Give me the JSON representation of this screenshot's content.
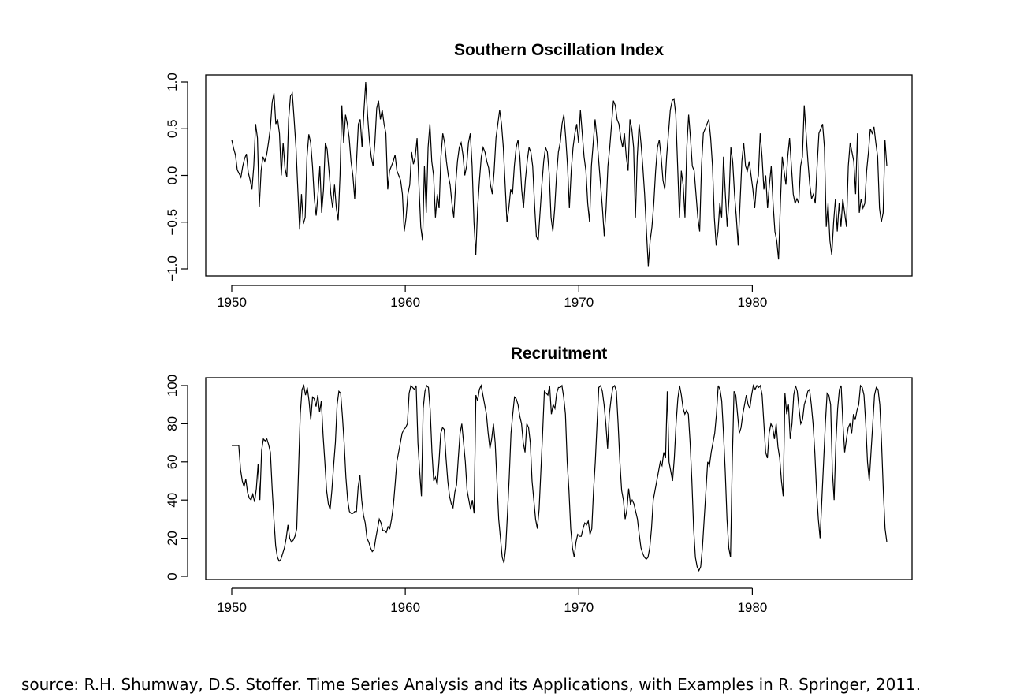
{
  "chart_data": [
    {
      "type": "line",
      "title": "Southern Oscillation Index",
      "xlabel": "",
      "ylabel": "",
      "xlim": [
        1950,
        1987.75
      ],
      "ylim": [
        -1.0,
        1.0
      ],
      "x_ticks": [
        1950,
        1960,
        1970,
        1980
      ],
      "y_ticks": [
        -1.0,
        -0.5,
        0.0,
        0.5,
        1.0
      ],
      "y_tick_labels": [
        "−1.0",
        "−0.5",
        "0.0",
        "0.5",
        "1.0"
      ],
      "grid": false,
      "legend": "none",
      "line_color": "#000000",
      "series": [
        {
          "x_start": 1950,
          "x_end": 1987.75,
          "values": [
            0.38,
            0.29,
            0.22,
            0.06,
            0.02,
            -0.02,
            0.1,
            0.18,
            0.23,
            0.03,
            -0.05,
            -0.15,
            0.1,
            0.55,
            0.4,
            -0.34,
            0.05,
            0.2,
            0.15,
            0.22,
            0.35,
            0.5,
            0.78,
            0.88,
            0.55,
            0.6,
            0.45,
            0.0,
            0.35,
            0.08,
            -0.02,
            0.6,
            0.85,
            0.88,
            0.6,
            0.3,
            -0.15,
            -0.58,
            -0.2,
            -0.52,
            -0.45,
            0.2,
            0.44,
            0.35,
            0.1,
            -0.25,
            -0.43,
            -0.2,
            0.1,
            -0.4,
            -0.15,
            0.35,
            0.28,
            0.05,
            -0.2,
            -0.35,
            -0.1,
            -0.35,
            -0.48,
            0.0,
            0.75,
            0.35,
            0.65,
            0.55,
            0.4,
            0.15,
            0.0,
            -0.25,
            0.15,
            0.55,
            0.6,
            0.3,
            0.68,
            1.0,
            0.65,
            0.38,
            0.2,
            0.1,
            0.35,
            0.72,
            0.8,
            0.6,
            0.7,
            0.55,
            0.45,
            -0.15,
            0.05,
            0.1,
            0.15,
            0.22,
            0.05,
            0.0,
            -0.05,
            -0.2,
            -0.6,
            -0.45,
            -0.2,
            -0.1,
            0.25,
            0.12,
            0.2,
            0.4,
            -0.1,
            -0.55,
            -0.7,
            0.1,
            -0.4,
            0.3,
            0.55,
            0.15,
            0.0,
            -0.45,
            -0.2,
            -0.35,
            0.2,
            0.45,
            0.35,
            0.15,
            0.0,
            -0.1,
            -0.3,
            -0.45,
            -0.1,
            0.15,
            0.3,
            0.35,
            0.22,
            0.0,
            0.1,
            0.35,
            0.45,
            0.1,
            -0.5,
            -0.85,
            -0.35,
            -0.05,
            0.2,
            0.3,
            0.25,
            0.15,
            0.08,
            -0.1,
            -0.2,
            0.05,
            0.4,
            0.55,
            0.7,
            0.55,
            0.3,
            -0.1,
            -0.5,
            -0.35,
            -0.15,
            -0.2,
            0.1,
            0.3,
            0.38,
            0.2,
            -0.15,
            -0.35,
            -0.05,
            0.15,
            0.3,
            0.25,
            0.1,
            -0.3,
            -0.65,
            -0.7,
            -0.4,
            -0.1,
            0.15,
            0.3,
            0.25,
            0.02,
            -0.45,
            -0.6,
            -0.35,
            0.0,
            0.25,
            0.35,
            0.55,
            0.65,
            0.4,
            0.1,
            -0.35,
            0.05,
            0.3,
            0.45,
            0.55,
            0.35,
            0.7,
            0.45,
            0.2,
            0.05,
            -0.3,
            -0.5,
            0.1,
            0.35,
            0.6,
            0.4,
            0.15,
            -0.1,
            -0.35,
            -0.65,
            -0.35,
            0.1,
            0.3,
            0.55,
            0.8,
            0.75,
            0.6,
            0.55,
            0.4,
            0.3,
            0.45,
            0.2,
            0.05,
            0.6,
            0.5,
            0.3,
            -0.45,
            0.2,
            0.55,
            0.35,
            0.1,
            -0.2,
            -0.6,
            -0.97,
            -0.7,
            -0.55,
            -0.3,
            0.05,
            0.3,
            0.38,
            0.2,
            -0.05,
            -0.15,
            0.2,
            0.45,
            0.7,
            0.8,
            0.82,
            0.65,
            0.1,
            -0.45,
            0.05,
            -0.1,
            -0.45,
            0.3,
            0.65,
            0.4,
            0.1,
            0.05,
            -0.2,
            -0.45,
            -0.6,
            0.1,
            0.45,
            0.5,
            0.55,
            0.6,
            0.4,
            0.1,
            -0.45,
            -0.75,
            -0.6,
            -0.3,
            -0.45,
            0.2,
            -0.2,
            -0.55,
            -0.25,
            0.3,
            0.15,
            -0.2,
            -0.45,
            -0.75,
            -0.3,
            0.15,
            0.35,
            0.1,
            0.05,
            0.15,
            0.0,
            -0.15,
            -0.35,
            -0.1,
            0.0,
            0.45,
            0.2,
            -0.15,
            0.0,
            -0.35,
            -0.1,
            0.1,
            -0.3,
            -0.6,
            -0.7,
            -0.9,
            -0.3,
            0.2,
            0.05,
            -0.1,
            0.2,
            0.4,
            0.1,
            -0.2,
            -0.3,
            -0.25,
            -0.3,
            0.1,
            0.2,
            0.75,
            0.45,
            0.15,
            -0.1,
            -0.25,
            -0.2,
            -0.3,
            0.1,
            0.45,
            0.5,
            0.55,
            0.3,
            -0.55,
            -0.3,
            -0.7,
            -0.85,
            -0.5,
            -0.25,
            -0.6,
            -0.3,
            -0.55,
            -0.25,
            -0.4,
            -0.55,
            0.1,
            0.35,
            0.25,
            0.15,
            -0.2,
            0.45,
            -0.4,
            -0.25,
            -0.35,
            -0.3,
            0.05,
            0.25,
            0.5,
            0.45,
            0.52,
            0.35,
            0.2,
            -0.35,
            -0.5,
            -0.4,
            0.38,
            0.1
          ]
        }
      ]
    },
    {
      "type": "line",
      "title": "Recruitment",
      "xlabel": "",
      "ylabel": "",
      "xlim": [
        1950,
        1987.75
      ],
      "ylim": [
        0,
        100
      ],
      "x_ticks": [
        1950,
        1960,
        1970,
        1980
      ],
      "y_ticks": [
        0,
        20,
        40,
        60,
        80,
        100
      ],
      "y_tick_labels": [
        "0",
        "20",
        "40",
        "60",
        "80",
        "100"
      ],
      "grid": false,
      "legend": "none",
      "line_color": "#000000",
      "series": [
        {
          "x_start": 1950,
          "x_end": 1987.75,
          "values": [
            68.6,
            68.6,
            68.6,
            68.6,
            68.6,
            56,
            50,
            47,
            51,
            44,
            41,
            40,
            43,
            39,
            46,
            59,
            40,
            66,
            72,
            71,
            72,
            69,
            65,
            46,
            30,
            16,
            10,
            8,
            9,
            12,
            15,
            20,
            27,
            20,
            18,
            19,
            21,
            25,
            55,
            85,
            98,
            100,
            95,
            99,
            92,
            82,
            94,
            93,
            89,
            95,
            86,
            92,
            74,
            60,
            45,
            38,
            35,
            45,
            58,
            70,
            90,
            97,
            96,
            84,
            70,
            52,
            40,
            34,
            33,
            33,
            34,
            34,
            47,
            53,
            40,
            32,
            28,
            20,
            18,
            15,
            13,
            14,
            20,
            25,
            30,
            28,
            24,
            24,
            23,
            26,
            25,
            30,
            37,
            48,
            60,
            65,
            70,
            75,
            77,
            78,
            80,
            96,
            100,
            99,
            98,
            100,
            70,
            55,
            42,
            88,
            97,
            100,
            99,
            87,
            65,
            50,
            52,
            48,
            60,
            75,
            78,
            77,
            62,
            50,
            42,
            38,
            36,
            44,
            48,
            62,
            75,
            80,
            70,
            60,
            45,
            40,
            35,
            40,
            33,
            95,
            92,
            98,
            100,
            95,
            90,
            85,
            75,
            67,
            72,
            80,
            70,
            50,
            30,
            20,
            10,
            7,
            15,
            33,
            52,
            75,
            85,
            94,
            93,
            90,
            84,
            80,
            70,
            65,
            80,
            78,
            70,
            50,
            40,
            30,
            25,
            35,
            55,
            75,
            97,
            96,
            95,
            100,
            85,
            90,
            88,
            96,
            99,
            99,
            100,
            94,
            85,
            60,
            45,
            25,
            15,
            10,
            18,
            22,
            21,
            21,
            25,
            28,
            27,
            29,
            22,
            25,
            45,
            60,
            80,
            99,
            100,
            97,
            90,
            80,
            67,
            85,
            93,
            99,
            100,
            97,
            80,
            60,
            45,
            40,
            30,
            35,
            46,
            38,
            40,
            38,
            34,
            30,
            22,
            15,
            12,
            10,
            9,
            10,
            15,
            25,
            40,
            45,
            50,
            55,
            60,
            58,
            65,
            62,
            97,
            60,
            55,
            50,
            62,
            80,
            93,
            100,
            95,
            88,
            85,
            87,
            85,
            70,
            50,
            25,
            10,
            5,
            3,
            5,
            15,
            30,
            45,
            60,
            58,
            65,
            70,
            75,
            85,
            100,
            98,
            92,
            75,
            55,
            30,
            15,
            10,
            60,
            97,
            95,
            85,
            75,
            78,
            85,
            90,
            95,
            90,
            88,
            95,
            100,
            98,
            100,
            99,
            100,
            95,
            80,
            65,
            62,
            75,
            80,
            78,
            72,
            80,
            68,
            62,
            50,
            42,
            96,
            85,
            90,
            72,
            80,
            95,
            100,
            97,
            88,
            80,
            82,
            90,
            93,
            97,
            98,
            90,
            80,
            65,
            45,
            30,
            20,
            40,
            60,
            80,
            96,
            95,
            90,
            55,
            40,
            70,
            88,
            98,
            100,
            80,
            65,
            72,
            78,
            80,
            75,
            85,
            82,
            87,
            90,
            100,
            99,
            95,
            80,
            60,
            50,
            65,
            80,
            95,
            99,
            98,
            90,
            70,
            45,
            25,
            18
          ]
        }
      ]
    }
  ],
  "source_note": "source: R.H. Shumway, D.S. Stoffer. Time Series Analysis and its Applications, with Examples in R. Springer, 2011."
}
